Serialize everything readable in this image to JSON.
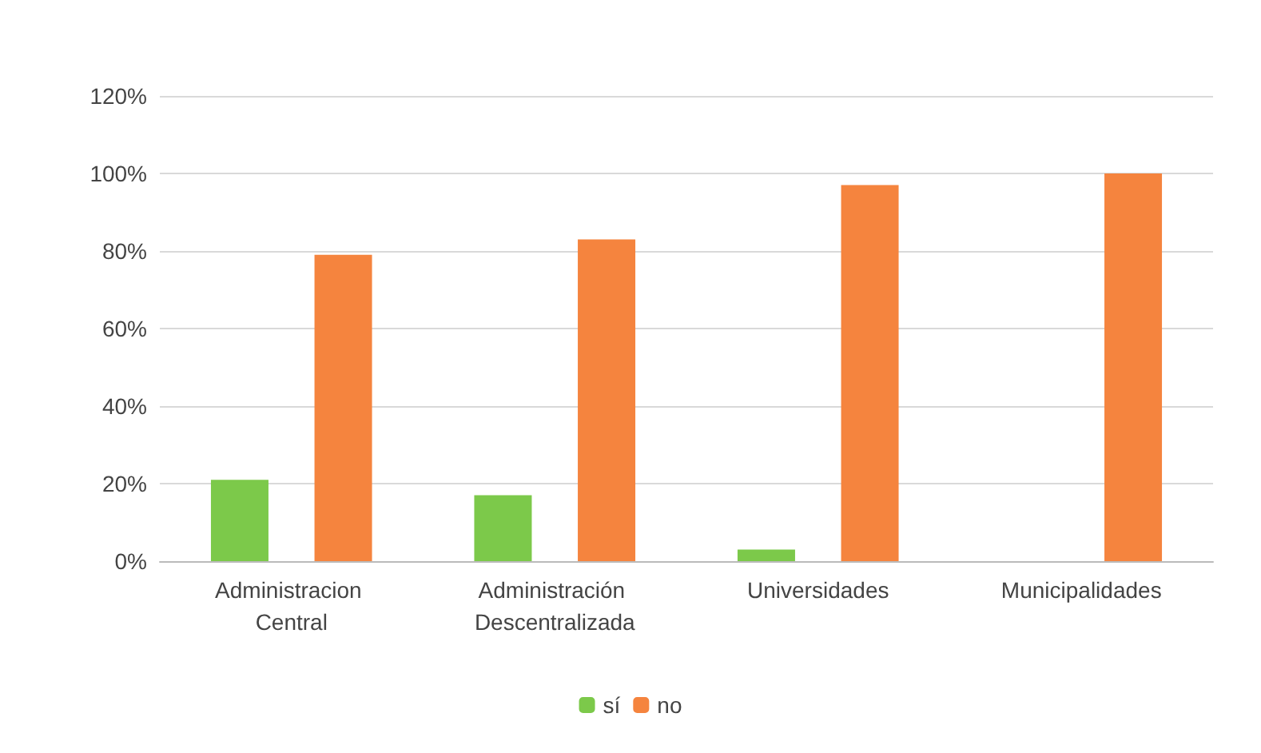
{
  "chart_data": {
    "type": "bar",
    "categories": [
      "Administracion Central",
      "Administración Descentralizada",
      "Universidades",
      "Municipalidades"
    ],
    "series": [
      {
        "name": "sí",
        "color": "#7cc94a",
        "values": [
          21,
          17,
          3,
          0
        ]
      },
      {
        "name": "no",
        "color": "#f5843e",
        "values": [
          79,
          83,
          97,
          100
        ]
      }
    ],
    "ylim": [
      0,
      120
    ],
    "yticks": [
      {
        "value": 0,
        "label": "0%"
      },
      {
        "value": 20,
        "label": "20%"
      },
      {
        "value": 40,
        "label": "40%"
      },
      {
        "value": 60,
        "label": "60%"
      },
      {
        "value": 80,
        "label": "80%"
      },
      {
        "value": 100,
        "label": "100%"
      },
      {
        "value": 120,
        "label": "120%"
      }
    ],
    "grid": "y",
    "legend": "bottom"
  }
}
